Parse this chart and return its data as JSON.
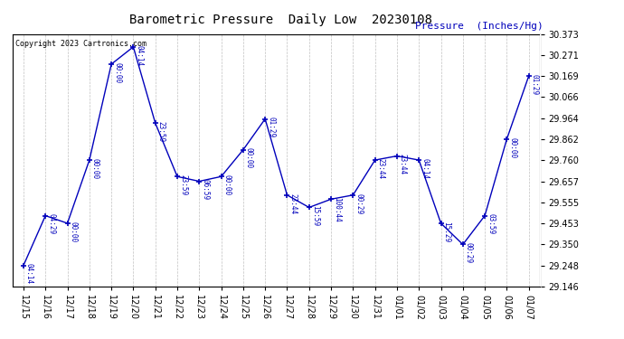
{
  "title": "Barometric Pressure  Daily Low  20230108",
  "ylabel": "Pressure  (Inches/Hg)",
  "copyright": "Copyright 2023 Cartronics.com",
  "background_color": "#ffffff",
  "line_color": "#0000bb",
  "grid_color": "#c0c0c0",
  "dates": [
    "12/15",
    "12/16",
    "12/17",
    "12/18",
    "12/19",
    "12/20",
    "12/21",
    "12/22",
    "12/23",
    "12/24",
    "12/25",
    "12/26",
    "12/27",
    "12/28",
    "12/29",
    "12/30",
    "12/31",
    "01/01",
    "01/02",
    "01/03",
    "01/04",
    "01/05",
    "01/06",
    "01/07"
  ],
  "values": [
    29.248,
    29.49,
    29.453,
    29.76,
    30.226,
    30.31,
    29.94,
    29.68,
    29.657,
    29.68,
    29.81,
    29.96,
    29.59,
    29.53,
    29.57,
    29.59,
    29.76,
    29.78,
    29.76,
    29.453,
    29.35,
    29.49,
    29.862,
    30.169
  ],
  "annotations": [
    "04:14",
    "04:29",
    "00:00",
    "00:00",
    "00:00",
    "04:14",
    "23:59",
    "23:59",
    "06:59",
    "00:00",
    "00:00",
    "01:29",
    "23:44",
    "15:59",
    "100:44",
    "00:29",
    "23:44",
    "23:44",
    "04:14",
    "15:29",
    "00:29",
    "03:59",
    "00:00",
    "01:29"
  ],
  "yticks": [
    29.146,
    29.248,
    29.35,
    29.453,
    29.555,
    29.657,
    29.76,
    29.862,
    29.964,
    30.066,
    30.169,
    30.271,
    30.373
  ],
  "ylim": [
    29.146,
    30.373
  ]
}
